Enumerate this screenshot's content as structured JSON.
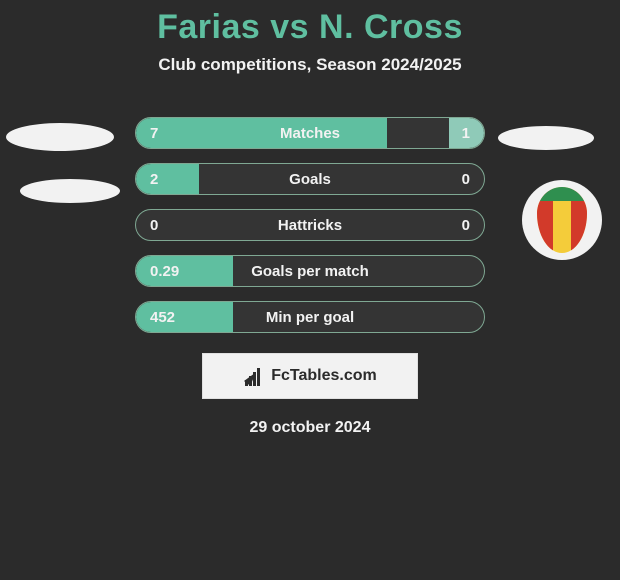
{
  "colors": {
    "page_bg": "#2b2b2b",
    "title": "#5fbfa0",
    "subtitle": "#f2f2f2",
    "row_bg": "#343434",
    "row_border": "#7fa893",
    "fill_green": "#5fbfa0",
    "fill_green_soft": "#8fcab8",
    "row_text": "#f2f2f2",
    "ellipse_white": "#f2f2f2",
    "crest_bg": "#f2f2f2",
    "crest_yellow": "#f4cc3a",
    "crest_red": "#d23a2a",
    "crest_green": "#2f8f4f",
    "footer_border": "#e0e0e0",
    "footer_bg": "#f2f2f2",
    "footer_text": "#2b2b2b"
  },
  "title": {
    "player1": "Farias",
    "vs": "vs",
    "player2": "N. Cross"
  },
  "subtitle": "Club competitions, Season 2024/2025",
  "rows": [
    {
      "label": "Matches",
      "left": "7",
      "right": "1",
      "left_pct": 72,
      "right_pct": 10
    },
    {
      "label": "Goals",
      "left": "2",
      "right": "0",
      "left_pct": 18,
      "right_pct": 0
    },
    {
      "label": "Hattricks",
      "left": "0",
      "right": "0",
      "left_pct": 0,
      "right_pct": 0
    },
    {
      "label": "Goals per match",
      "left": "0.29",
      "right": "",
      "left_pct": 28,
      "right_pct": 0
    },
    {
      "label": "Min per goal",
      "left": "452",
      "right": "",
      "left_pct": 28,
      "right_pct": 0
    }
  ],
  "footer_brand": "FcTables.com",
  "footer_date": "29 october 2024"
}
